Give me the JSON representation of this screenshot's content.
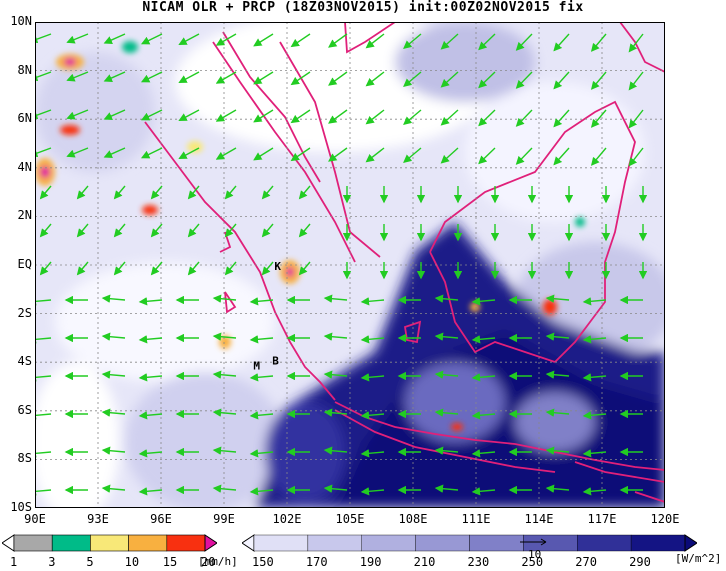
{
  "title": "NICAM OLR + PRCP (18Z03NOV2015) init:00Z02NOV2015 fix",
  "lat_labels": [
    "10N",
    "8N",
    "6N",
    "4N",
    "2N",
    "EQ",
    "2S",
    "4S",
    "6S",
    "8S",
    "10S"
  ],
  "lon_labels": [
    "90E",
    "93E",
    "96E",
    "99E",
    "102E",
    "105E",
    "108E",
    "111E",
    "114E",
    "117E",
    "120E"
  ],
  "map_labels": [
    {
      "text": "K",
      "lon": 101.4,
      "lat": -0.2
    },
    {
      "text": "M",
      "lon": 100.4,
      "lat": -4.3
    },
    {
      "text": "B",
      "lon": 101.3,
      "lat": -4.1
    }
  ],
  "precip_bar": {
    "ticks": [
      "1",
      "3",
      "5",
      "10",
      "15",
      "20"
    ],
    "unit": "[mm/h]",
    "colors": [
      "#ffffff",
      "#a8a8a8",
      "#00bb88",
      "#f8e878",
      "#f8b040",
      "#f83010",
      "#e010a0"
    ]
  },
  "olr_bar": {
    "ticks": [
      "150",
      "170",
      "190",
      "210",
      "230",
      "250",
      "270",
      "290"
    ],
    "unit": "[W/m^2]",
    "arrow_label": "10",
    "colors": [
      "#f4f4ff",
      "#e0e0f6",
      "#c8c8ec",
      "#b0b0e0",
      "#9898d4",
      "#8080c8",
      "#5858b0",
      "#303098",
      "#141484",
      "#0a0a78"
    ]
  },
  "colors": {
    "coast": "#e0207a",
    "wind": "#22cc22",
    "land_high": "#0a0a78",
    "grid": "#888888"
  }
}
